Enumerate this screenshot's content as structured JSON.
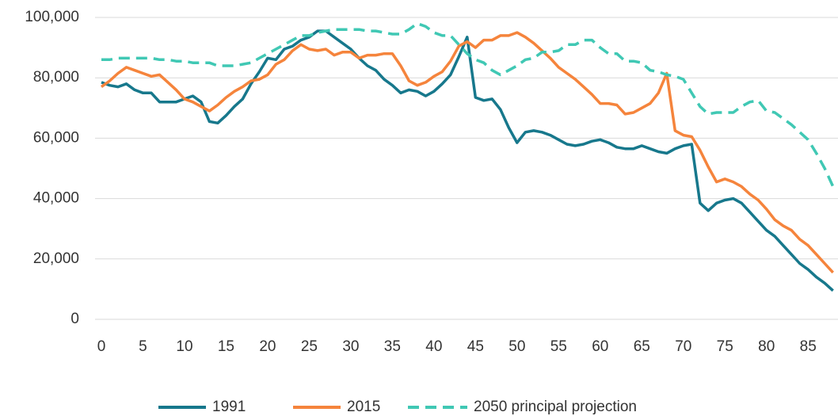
{
  "chart_data": {
    "type": "line",
    "x": [
      0,
      1,
      2,
      3,
      4,
      5,
      6,
      7,
      8,
      9,
      10,
      11,
      12,
      13,
      14,
      15,
      16,
      17,
      18,
      19,
      20,
      21,
      22,
      23,
      24,
      25,
      26,
      27,
      28,
      29,
      30,
      31,
      32,
      33,
      34,
      35,
      36,
      37,
      38,
      39,
      40,
      41,
      42,
      43,
      44,
      45,
      46,
      47,
      48,
      49,
      50,
      51,
      52,
      53,
      54,
      55,
      56,
      57,
      58,
      59,
      60,
      61,
      62,
      63,
      64,
      65,
      66,
      67,
      68,
      69,
      70,
      71,
      72,
      73,
      74,
      75,
      76,
      77,
      78,
      79,
      80,
      81,
      82,
      83,
      84,
      85,
      86,
      87,
      88
    ],
    "series": [
      {
        "name": "1991",
        "color": "#17788c",
        "dashed": false,
        "values": [
          78500,
          77500,
          77000,
          78000,
          76000,
          75000,
          75000,
          72000,
          72000,
          72000,
          73000,
          74000,
          72000,
          65500,
          65000,
          67500,
          70500,
          73000,
          78000,
          82000,
          86500,
          86000,
          89500,
          90500,
          92500,
          93500,
          95500,
          95500,
          93500,
          91500,
          89500,
          86500,
          84000,
          82500,
          79500,
          77500,
          75000,
          76000,
          75500,
          74000,
          75500,
          78000,
          81000,
          87000,
          93500,
          73500,
          72500,
          73000,
          69500,
          63500,
          58500,
          62000,
          62500,
          62000,
          61000,
          59500,
          58000,
          57500,
          58000,
          59000,
          59500,
          58500,
          57000,
          56500,
          56500,
          57500,
          56500,
          55500,
          55000,
          56500,
          57500,
          58000,
          38500,
          36000,
          38500,
          39500,
          40000,
          38500,
          35500,
          32500,
          29500,
          27500,
          24500,
          21500,
          18500,
          16500,
          14000,
          12000,
          9500
        ]
      },
      {
        "name": "2015",
        "color": "#f5843c",
        "dashed": false,
        "values": [
          77000,
          79000,
          81500,
          83500,
          82500,
          81500,
          80500,
          81000,
          78500,
          76000,
          73000,
          72000,
          70500,
          69000,
          71000,
          73500,
          75500,
          77000,
          79000,
          79500,
          81000,
          84500,
          86000,
          89000,
          91000,
          89500,
          89000,
          89500,
          87500,
          88500,
          88500,
          86500,
          87500,
          87500,
          88000,
          88000,
          84000,
          79000,
          77500,
          78500,
          80500,
          82000,
          85500,
          90500,
          92000,
          90000,
          92500,
          92500,
          94000,
          94000,
          95000,
          93500,
          91500,
          89000,
          86500,
          83500,
          81500,
          79500,
          77000,
          74500,
          71500,
          71500,
          71000,
          68000,
          68500,
          70000,
          71500,
          75000,
          81500,
          62500,
          61000,
          60500,
          56000,
          50500,
          45500,
          46500,
          45500,
          44000,
          41500,
          39500,
          36500,
          33000,
          31000,
          29500,
          26500,
          24500,
          21500,
          18500,
          15500
        ]
      },
      {
        "name": "2050 principal projection",
        "color": "#40c8b4",
        "dashed": true,
        "values": [
          86000,
          86000,
          86500,
          86500,
          86500,
          86500,
          86500,
          86000,
          86000,
          85500,
          85500,
          85000,
          85000,
          85000,
          84000,
          84000,
          84000,
          84500,
          85000,
          86500,
          88000,
          89500,
          91000,
          92500,
          94000,
          94000,
          95000,
          95500,
          96000,
          96000,
          96000,
          96000,
          95500,
          95500,
          95000,
          94500,
          94500,
          96000,
          98000,
          97000,
          95000,
          94000,
          94000,
          91000,
          88000,
          86000,
          85000,
          82500,
          81000,
          82500,
          84000,
          86000,
          86500,
          88500,
          88500,
          89000,
          91000,
          91000,
          92500,
          92500,
          90000,
          88000,
          88000,
          85500,
          85500,
          85000,
          82500,
          82000,
          81000,
          80500,
          79500,
          75000,
          70500,
          68000,
          68500,
          68500,
          68500,
          70500,
          72000,
          72500,
          69000,
          68500,
          66500,
          64500,
          62000,
          59500,
          55000,
          50000,
          44000
        ]
      }
    ],
    "xlim": [
      -0.76,
      88.6
    ],
    "xticks": [
      0,
      5,
      10,
      15,
      20,
      25,
      30,
      35,
      40,
      45,
      50,
      55,
      60,
      65,
      70,
      75,
      80,
      85
    ],
    "ylim": [
      0,
      100000
    ],
    "yticks": [
      0,
      {
        "value": 20000,
        "label": "20,000"
      },
      {
        "value": 40000,
        "label": "40,000"
      },
      {
        "value": 60000,
        "label": "60,000"
      },
      {
        "value": 80000,
        "label": "80,000"
      },
      {
        "value": 100000,
        "label": "100,000"
      }
    ],
    "grid": true,
    "legend": "bottom"
  }
}
